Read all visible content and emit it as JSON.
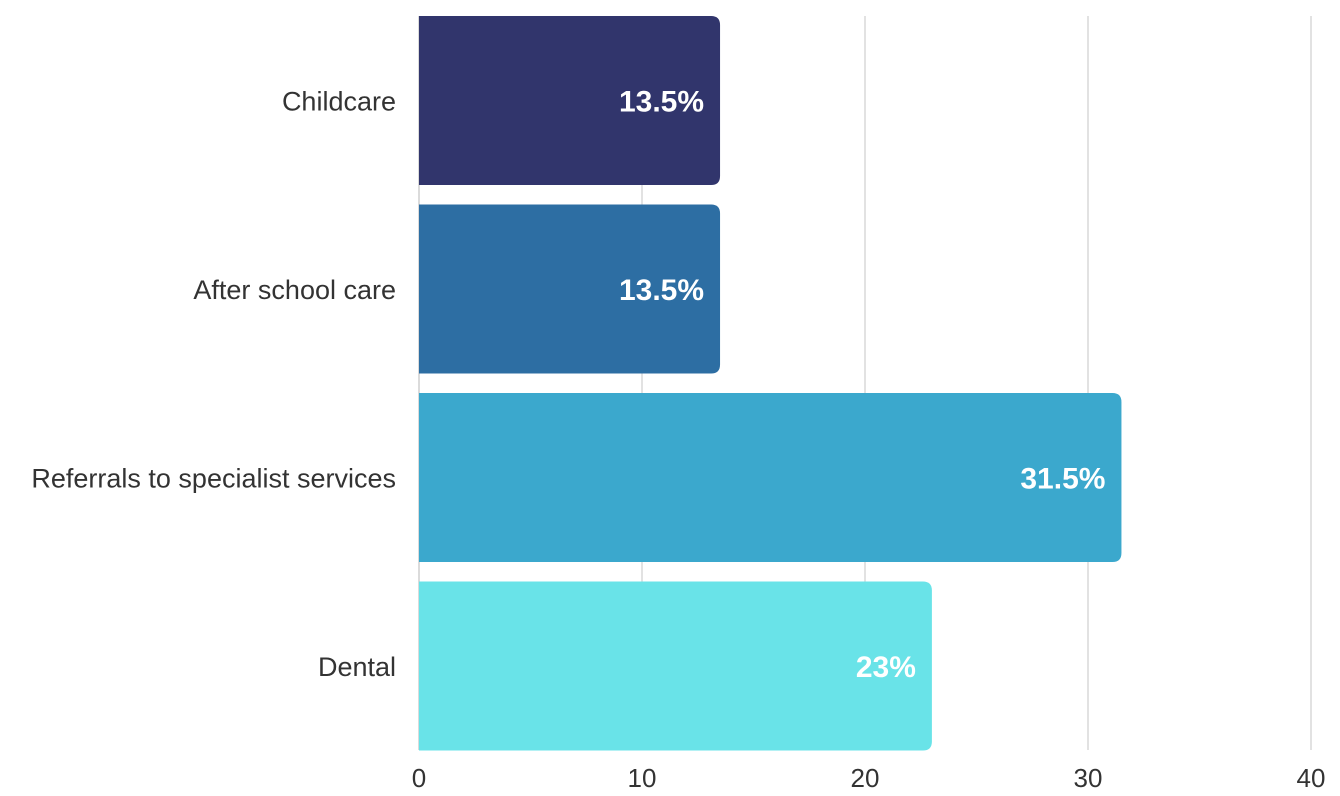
{
  "chart_data": {
    "type": "bar",
    "orientation": "horizontal",
    "categories": [
      "Childcare",
      "After school care",
      "Referrals to specialist services",
      "Dental"
    ],
    "values": [
      13.5,
      13.5,
      31.5,
      23
    ],
    "value_labels": [
      "13.5%",
      "13.5%",
      "31.5%",
      "23%"
    ],
    "colors": [
      "#31356c",
      "#2d6ea3",
      "#3ba8cd",
      "#69e3e8"
    ],
    "xlim": [
      0,
      40
    ],
    "xticks": [
      "0",
      "10",
      "20",
      "30",
      "40"
    ],
    "grid": true
  }
}
